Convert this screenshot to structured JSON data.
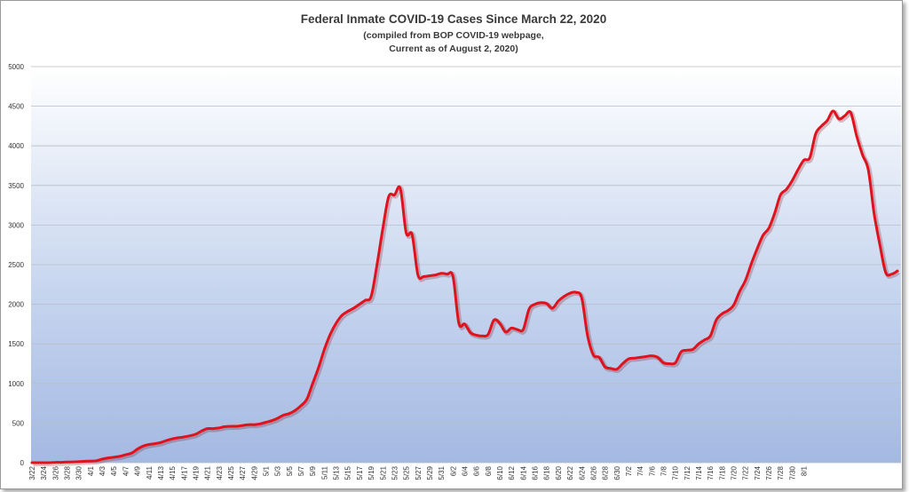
{
  "chart_data": {
    "type": "line",
    "title": "Federal Inmate COVID-19 Cases Since March 22, 2020",
    "subtitle_lines": [
      "(compiled from BOP COVID-19 webpage,",
      "Current as of August 2, 2020)"
    ],
    "xlabel": "",
    "ylabel": "",
    "ylim": [
      0,
      5000
    ],
    "yticks": [
      0,
      500,
      1000,
      1500,
      2000,
      2500,
      3000,
      3500,
      4000,
      4500,
      5000
    ],
    "grid": true,
    "legend": "none",
    "line_color": "#e0121e",
    "x_tick_labels": [
      "3/22",
      "3/24",
      "3/26",
      "3/28",
      "3/30",
      "4/1",
      "4/3",
      "4/5",
      "4/7",
      "4/9",
      "4/11",
      "4/13",
      "4/15",
      "4/17",
      "4/19",
      "4/21",
      "4/23",
      "4/25",
      "4/27",
      "4/29",
      "5/1",
      "5/3",
      "5/5",
      "5/7",
      "5/9",
      "5/11",
      "5/13",
      "5/15",
      "5/17",
      "5/19",
      "5/21",
      "5/23",
      "5/25",
      "5/27",
      "5/29",
      "5/31",
      "6/2",
      "6/4",
      "6/6",
      "6/8",
      "6/10",
      "6/12",
      "6/14",
      "6/16",
      "6/18",
      "6/20",
      "6/22",
      "6/24",
      "6/26",
      "6/28",
      "6/30",
      "7/2",
      "7/4",
      "7/6",
      "7/8",
      "7/10",
      "7/12",
      "7/14",
      "7/16",
      "7/18",
      "7/20",
      "7/22",
      "7/24",
      "7/26",
      "7/28",
      "7/30",
      "8/1"
    ],
    "series": [
      {
        "values": [
          0,
          0,
          0,
          0,
          5,
          5,
          8,
          10,
          12,
          18,
          20,
          25,
          45,
          60,
          70,
          80,
          100,
          120,
          170,
          210,
          230,
          240,
          255,
          280,
          300,
          315,
          325,
          340,
          360,
          400,
          430,
          430,
          440,
          455,
          460,
          460,
          470,
          480,
          480,
          490,
          510,
          530,
          560,
          600,
          620,
          660,
          720,
          800,
          1000,
          1200,
          1430,
          1620,
          1760,
          1860,
          1910,
          1950,
          2000,
          2050,
          2100,
          2500,
          2960,
          3360,
          3380,
          3460,
          2900,
          2880,
          2370,
          2350,
          2360,
          2370,
          2390,
          2380,
          2350,
          1760,
          1750,
          1640,
          1610,
          1600,
          1620,
          1800,
          1760,
          1650,
          1700,
          1680,
          1680,
          1940,
          2000,
          2020,
          2010,
          1950,
          2040,
          2100,
          2140,
          2150,
          2080,
          1610,
          1360,
          1330,
          1210,
          1190,
          1180,
          1250,
          1310,
          1320,
          1330,
          1340,
          1350,
          1330,
          1260,
          1250,
          1260,
          1400,
          1420,
          1430,
          1500,
          1550,
          1600,
          1800,
          1880,
          1920,
          1990,
          2160,
          2300,
          2510,
          2700,
          2870,
          2960,
          3150,
          3380,
          3450,
          3560,
          3700,
          3820,
          3850,
          4150,
          4250,
          4320,
          4440,
          4340,
          4380,
          4420,
          4130,
          3890,
          3700,
          3150,
          2750,
          2400,
          2380,
          2420
        ]
      }
    ]
  }
}
